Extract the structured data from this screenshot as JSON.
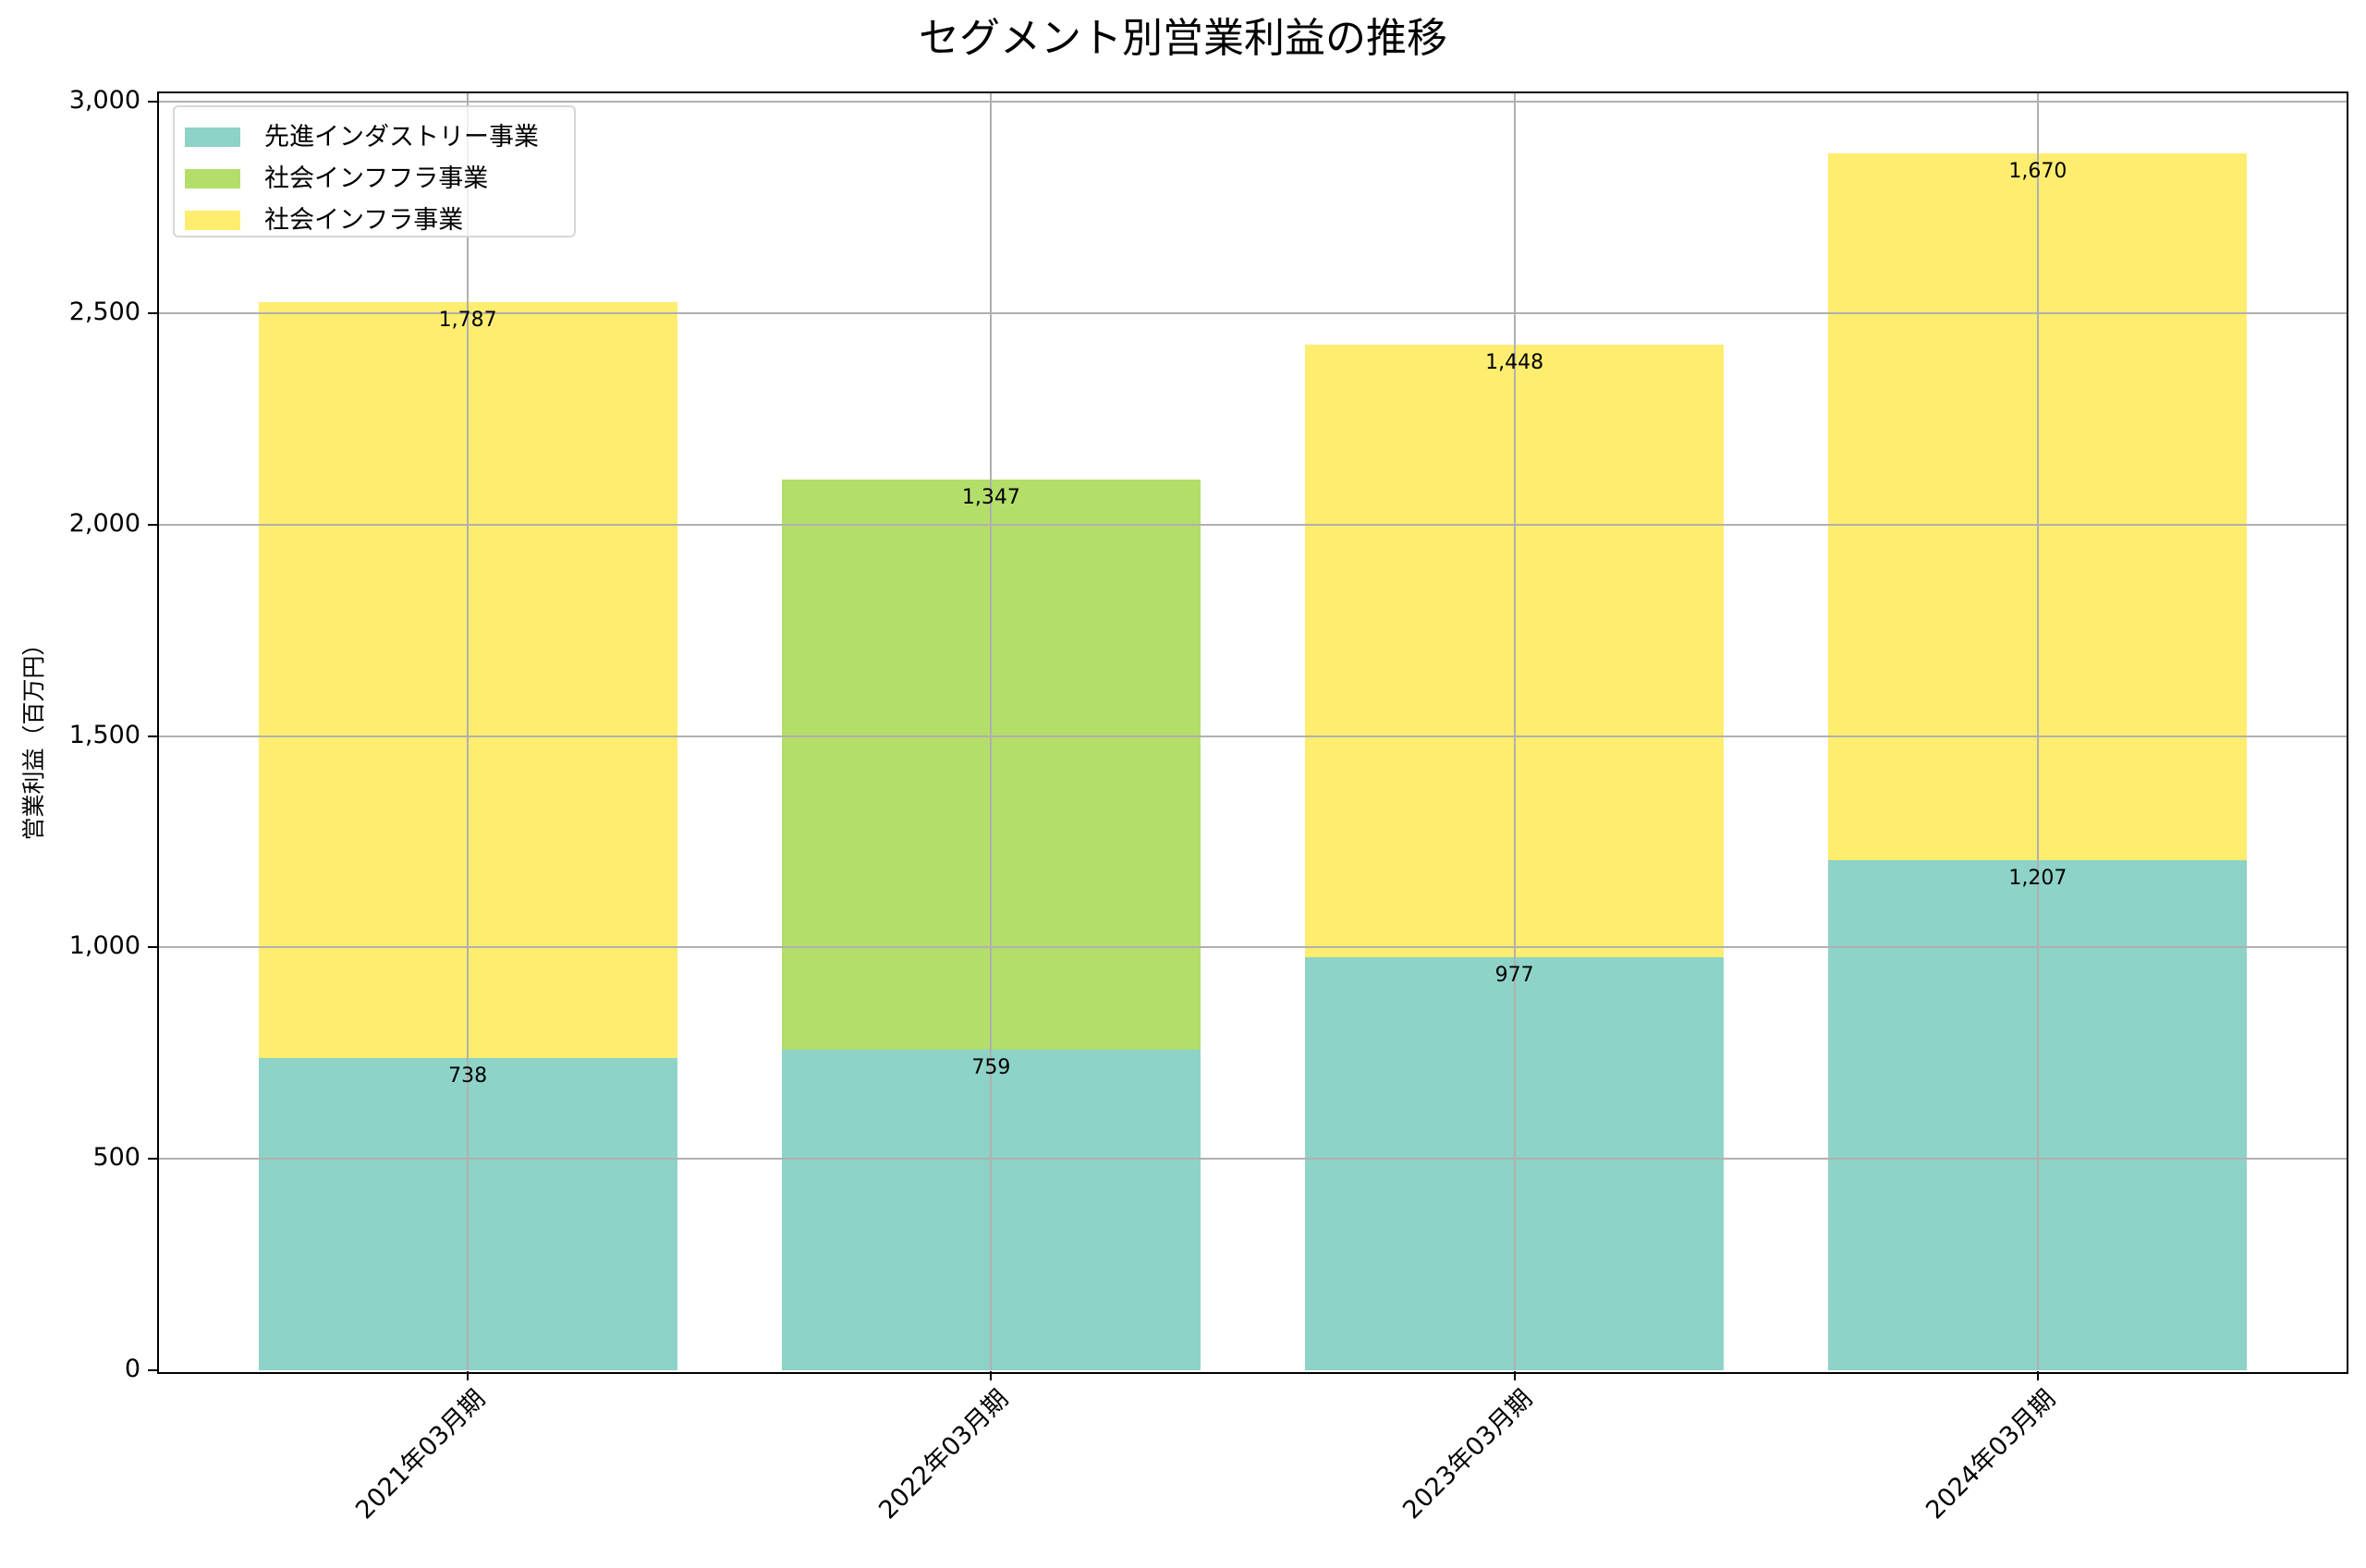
{
  "chart_data": {
    "type": "bar",
    "stacked": true,
    "title": "セグメント別営業利益の推移",
    "xlabel": "",
    "ylabel": "営業利益（百万円）",
    "categories": [
      "2021年03月期",
      "2022年03月期",
      "2023年03月期",
      "2024年03月期"
    ],
    "series": [
      {
        "name": "先進インダストリー事業",
        "color": "#8dd3c7",
        "values": [
          738,
          759,
          977,
          1207
        ]
      },
      {
        "name": "社会インフフラ事業",
        "color": "#b3de69",
        "values": [
          null,
          1347,
          null,
          null
        ]
      },
      {
        "name": "社会インフラ事業",
        "color": "#ffed6f",
        "values": [
          1787,
          null,
          1448,
          1670
        ]
      }
    ],
    "segment_labels": [
      [
        "738",
        "1,787"
      ],
      [
        "759",
        "1,347"
      ],
      [
        "977",
        "1,448"
      ],
      [
        "1,207",
        "1,670"
      ]
    ],
    "ylim": [
      0,
      3000
    ],
    "yticks": [
      0,
      500,
      1000,
      1500,
      2000,
      2500,
      3000
    ],
    "ytick_labels": [
      "0",
      "500",
      "1,000",
      "1,500",
      "2,000",
      "2,500",
      "3,000"
    ],
    "grid": true,
    "legend_position": "upper left"
  },
  "legend": {
    "items": [
      {
        "label": "先進インダストリー事業",
        "color": "#8dd3c7"
      },
      {
        "label": "社会インフフラ事業",
        "color": "#b3de69"
      },
      {
        "label": "社会インフラ事業",
        "color": "#ffed6f"
      }
    ]
  }
}
